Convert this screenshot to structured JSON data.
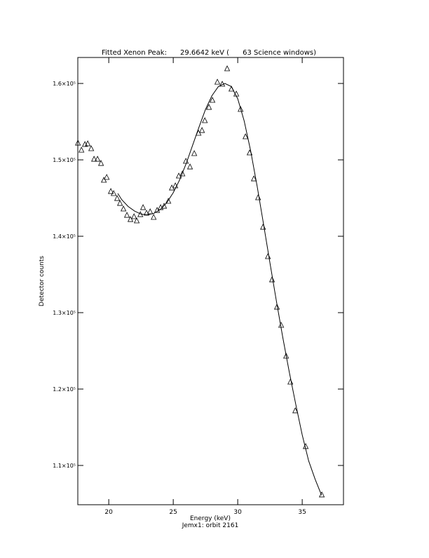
{
  "chart_data": {
    "type": "scatter",
    "title": "Fitted Xenon Peak:      29.6642 keV (      63 Science windows)",
    "x_label": "Energy (keV)",
    "subtitle": "Jemx1: orbit 2161",
    "y_label": "Detector counts",
    "xlim": [
      17.6,
      38.2
    ],
    "ylim": [
      104860,
      163400
    ],
    "xticks": [
      20,
      25,
      30,
      35
    ],
    "yticks": [
      {
        "value": 110000,
        "label": "1.1×10⁵"
      },
      {
        "value": 120000,
        "label": "1.2×10⁵"
      },
      {
        "value": 130000,
        "label": "1.3×10⁵"
      },
      {
        "value": 140000,
        "label": "1.4×10⁵"
      },
      {
        "value": 150000,
        "label": "1.5×10⁵"
      },
      {
        "value": 160000,
        "label": "1.6×10⁵"
      }
    ],
    "series": [
      {
        "type": "scatter",
        "marker": "triangle",
        "color": "#000000",
        "x": [
          17.61,
          17.88,
          18.15,
          18.37,
          18.64,
          18.86,
          19.13,
          19.4,
          19.62,
          19.84,
          20.16,
          20.38,
          20.65,
          20.87,
          21.14,
          21.41,
          21.68,
          21.96,
          22.17,
          22.45,
          22.66,
          22.93,
          23.21,
          23.48,
          23.75,
          24.02,
          24.29,
          24.62,
          24.89,
          25.16,
          25.43,
          25.71,
          25.98,
          26.3,
          26.63,
          26.96,
          27.23,
          27.45,
          27.77,
          28.04,
          28.42,
          28.8,
          29.18,
          29.51,
          29.89,
          30.22,
          30.6,
          30.92,
          31.25,
          31.58,
          31.96,
          32.34,
          32.66,
          33.04,
          33.37,
          33.75,
          34.08,
          34.46,
          35.27,
          36.52
        ],
        "values": [
          152200,
          151280,
          152020,
          152110,
          151470,
          150090,
          150090,
          149540,
          147340,
          147710,
          145870,
          145600,
          144950,
          144310,
          143580,
          142750,
          142200,
          142570,
          142020,
          142840,
          143760,
          143030,
          143210,
          142480,
          143390,
          143760,
          143940,
          144590,
          146330,
          146610,
          147890,
          148170,
          149820,
          149080,
          150830,
          153490,
          153850,
          155140,
          156880,
          157800,
          160180,
          159910,
          161930,
          159270,
          158620,
          156610,
          153030,
          150920,
          147520,
          145050,
          141190,
          137340,
          134310,
          130730,
          128350,
          124310,
          120920,
          117160,
          112480,
          106150
        ]
      },
      {
        "type": "line",
        "color": "#000000",
        "x": [
          20.7,
          21.0,
          21.5,
          22.0,
          22.5,
          23.0,
          23.5,
          24.0,
          24.5,
          25.0,
          25.5,
          26.0,
          26.5,
          27.0,
          27.5,
          28.0,
          28.5,
          29.0,
          29.5,
          30.0,
          30.5,
          31.0,
          31.5,
          32.0,
          32.5,
          33.0,
          33.5,
          34.0,
          34.5,
          35.0,
          35.5,
          36.0,
          36.5
        ],
        "values": [
          145600,
          144800,
          143900,
          143300,
          142900,
          142800,
          143000,
          143500,
          144400,
          145700,
          147400,
          149500,
          151900,
          154300,
          156600,
          158400,
          159600,
          160000,
          159600,
          158000,
          155100,
          151200,
          146600,
          141600,
          136500,
          131500,
          126700,
          122200,
          118000,
          114000,
          110600,
          108200,
          106100
        ]
      }
    ]
  }
}
